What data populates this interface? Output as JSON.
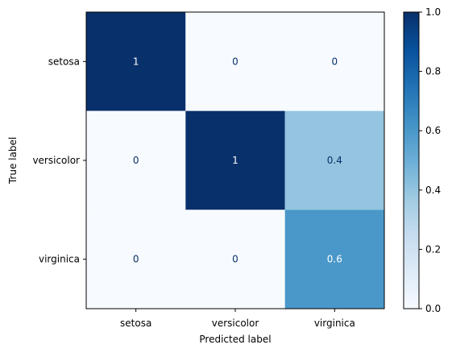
{
  "chart_data": {
    "type": "heatmap",
    "title": "",
    "xlabel": "Predicted label",
    "ylabel": "True label",
    "x_categories": [
      "setosa",
      "versicolor",
      "virginica"
    ],
    "y_categories": [
      "setosa",
      "versicolor",
      "virginica"
    ],
    "values": [
      [
        1,
        0,
        0
      ],
      [
        0,
        1,
        0.4
      ],
      [
        0,
        0,
        0.6
      ]
    ],
    "cell_labels": [
      [
        "1",
        "0",
        "0"
      ],
      [
        "0",
        "1",
        "0.4"
      ],
      [
        "0",
        "0",
        "0.6"
      ]
    ],
    "colormap": "Blues",
    "colorbar": {
      "range": [
        0,
        1
      ],
      "ticks": [
        0,
        0.2,
        0.4,
        0.6,
        0.8,
        1
      ],
      "tick_labels": [
        "0.0",
        "0.2",
        "0.4",
        "0.6",
        "0.8",
        "1.0"
      ]
    },
    "grid": false
  }
}
